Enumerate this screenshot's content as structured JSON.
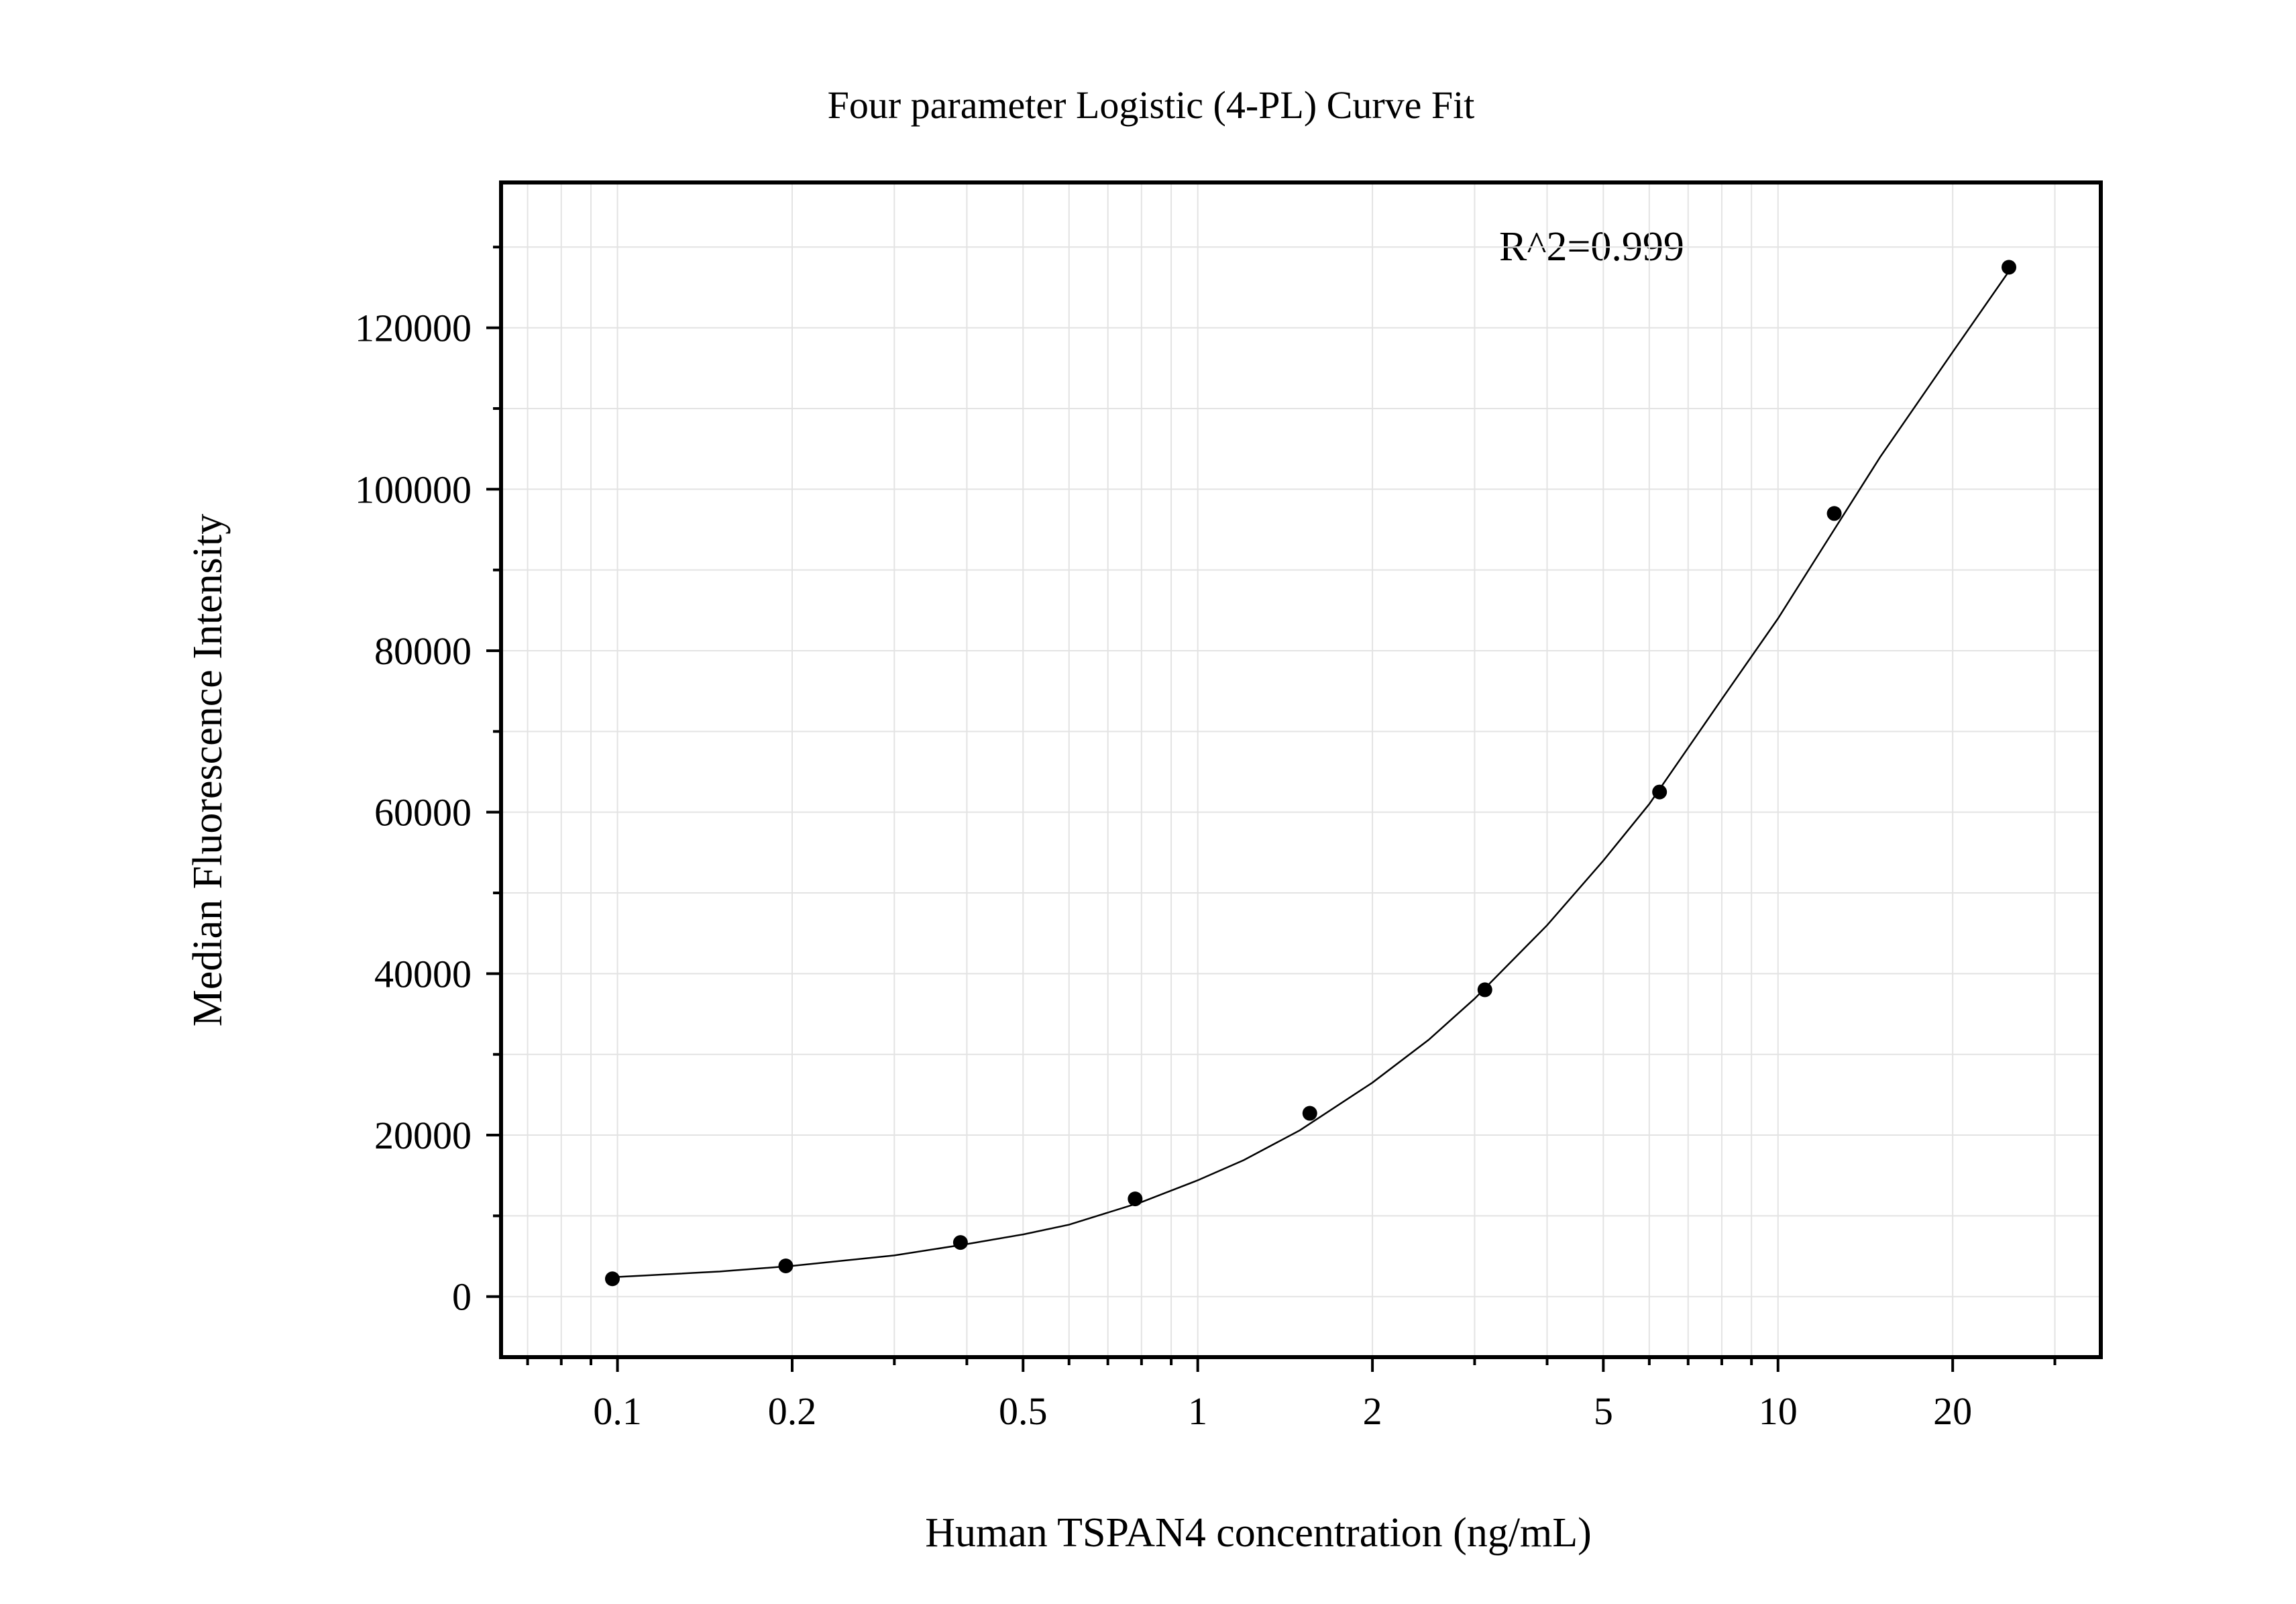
{
  "chart_data": {
    "type": "scatter",
    "title": "Four parameter Logistic (4-PL) Curve Fit",
    "xlabel": "Human TSPAN4 concentration (ng/mL)",
    "ylabel": "Median Fluorescence Intensity",
    "x_scale": "log",
    "xlim": [
      0.063,
      36
    ],
    "ylim": [
      -7500,
      138000
    ],
    "x_ticks": [
      0.1,
      0.2,
      0.5,
      1,
      2,
      5,
      10,
      20
    ],
    "x_tick_labels": [
      "0.1",
      "0.2",
      "0.5",
      "1",
      "2",
      "5",
      "10",
      "20"
    ],
    "y_ticks": [
      0,
      20000,
      40000,
      60000,
      80000,
      100000,
      120000
    ],
    "y_tick_labels": [
      "0",
      "20000",
      "40000",
      "60000",
      "80000",
      "100000",
      "120000"
    ],
    "grid": true,
    "annotation": "R^2=0.999",
    "points": {
      "x": [
        0.098,
        0.195,
        0.39,
        0.78,
        1.56,
        3.125,
        6.25,
        12.5,
        25
      ],
      "y": [
        2200,
        3800,
        6700,
        12100,
        22700,
        38000,
        62500,
        97000,
        127500
      ]
    },
    "fit_curve": {
      "x": [
        0.098,
        0.15,
        0.2,
        0.3,
        0.4,
        0.5,
        0.6,
        0.8,
        1,
        1.2,
        1.5,
        2,
        2.5,
        3,
        4,
        5,
        6,
        8,
        10,
        12,
        15,
        20,
        25
      ],
      "y": [
        2400,
        3100,
        3800,
        5100,
        6500,
        7700,
        8900,
        11700,
        14400,
        16900,
        20600,
        26500,
        31800,
        36900,
        46000,
        54000,
        61000,
        74000,
        84000,
        93000,
        104000,
        117000,
        127000
      ]
    },
    "colors": {
      "points": "#000000",
      "curve": "#000000",
      "grid": "#e3e3e3"
    }
  }
}
